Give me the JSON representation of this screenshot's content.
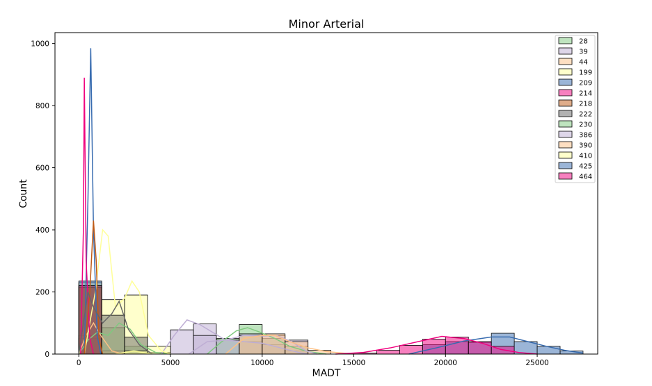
{
  "chart_data": {
    "type": "histogram",
    "title": "Minor Arterial",
    "xlabel": "MADT",
    "ylabel": "Count",
    "xlim": [
      -1300,
      28300
    ],
    "ylim": [
      0,
      1035
    ],
    "xticks": [
      0,
      5000,
      10000,
      15000,
      20000,
      25000
    ],
    "yticks": [
      0,
      200,
      400,
      600,
      800,
      1000
    ],
    "xtick_labels": [
      "0",
      "5000",
      "10000",
      "15000",
      "20000",
      "25000"
    ],
    "ytick_labels": [
      "0",
      "200",
      "400",
      "600",
      "800",
      "1000"
    ],
    "legend_position": "top-right",
    "series": [
      {
        "name": "28",
        "color": "#7fc97f",
        "bins": [
          [
            0,
            1250,
            50
          ],
          [
            1250,
            2500,
            85
          ],
          [
            2500,
            3750,
            25
          ],
          [
            3750,
            5000,
            5
          ]
        ],
        "kde": [
          [
            0,
            0
          ],
          [
            500,
            45
          ],
          [
            1000,
            70
          ],
          [
            1600,
            60
          ],
          [
            2200,
            100
          ],
          [
            2800,
            80
          ],
          [
            3400,
            30
          ],
          [
            4200,
            5
          ],
          [
            5000,
            0
          ]
        ]
      },
      {
        "name": "39",
        "color": "#beaed4",
        "bins": [
          [
            5000,
            6250,
            78
          ],
          [
            6250,
            7500,
            97
          ],
          [
            7500,
            8750,
            45
          ],
          [
            8750,
            10000,
            40
          ],
          [
            10000,
            11250,
            30
          ],
          [
            11250,
            12500,
            10
          ]
        ],
        "kde": [
          [
            4500,
            0
          ],
          [
            5200,
            60
          ],
          [
            5900,
            110
          ],
          [
            6600,
            95
          ],
          [
            7300,
            70
          ],
          [
            8000,
            45
          ],
          [
            9000,
            40
          ],
          [
            10000,
            35
          ],
          [
            11000,
            20
          ],
          [
            12000,
            5
          ],
          [
            12500,
            0
          ]
        ]
      },
      {
        "name": "44",
        "color": "#fdc086",
        "bins": [
          [
            0,
            1250,
            60
          ],
          [
            1250,
            2500,
            10
          ]
        ],
        "kde": [
          [
            0,
            0
          ],
          [
            400,
            60
          ],
          [
            800,
            100
          ],
          [
            1200,
            60
          ],
          [
            1800,
            10
          ],
          [
            2400,
            0
          ]
        ]
      },
      {
        "name": "199",
        "color": "#ffff99",
        "bins": [
          [
            0,
            1250,
            230
          ],
          [
            1250,
            2500,
            175
          ],
          [
            2500,
            3750,
            190
          ],
          [
            3750,
            5000,
            25
          ]
        ],
        "kde": [
          [
            300,
            0
          ],
          [
            900,
            200
          ],
          [
            1300,
            400
          ],
          [
            1600,
            380
          ],
          [
            2000,
            150
          ],
          [
            2500,
            180
          ],
          [
            2900,
            235
          ],
          [
            3300,
            200
          ],
          [
            3800,
            60
          ],
          [
            4500,
            10
          ],
          [
            5000,
            0
          ]
        ]
      },
      {
        "name": "209",
        "color": "#386cb0",
        "bins": [
          [
            0,
            1250,
            235
          ]
        ],
        "kde": [
          [
            300,
            0
          ],
          [
            500,
            500
          ],
          [
            650,
            985
          ],
          [
            800,
            400
          ],
          [
            1000,
            60
          ],
          [
            1200,
            0
          ]
        ]
      },
      {
        "name": "214",
        "color": "#f0027f",
        "bins": [
          [
            0,
            1250,
            220
          ]
        ],
        "kde": [
          [
            100,
            0
          ],
          [
            250,
            400
          ],
          [
            300,
            890
          ],
          [
            400,
            300
          ],
          [
            600,
            50
          ],
          [
            800,
            0
          ]
        ]
      },
      {
        "name": "218",
        "color": "#bf5b17",
        "bins": [
          [
            0,
            1250,
            215
          ]
        ],
        "kde": [
          [
            300,
            0
          ],
          [
            600,
            200
          ],
          [
            800,
            430
          ],
          [
            950,
            300
          ],
          [
            1100,
            50
          ],
          [
            1300,
            0
          ]
        ]
      },
      {
        "name": "222",
        "color": "#666666",
        "bins": [
          [
            0,
            1250,
            220
          ],
          [
            1250,
            2500,
            125
          ],
          [
            2500,
            3750,
            55
          ]
        ],
        "kde": [
          [
            0,
            0
          ],
          [
            500,
            200
          ],
          [
            800,
            150
          ],
          [
            1300,
            100
          ],
          [
            1800,
            130
          ],
          [
            2200,
            170
          ],
          [
            2700,
            80
          ],
          [
            3300,
            30
          ],
          [
            4000,
            0
          ]
        ]
      },
      {
        "name": "230",
        "color": "#7fc97f",
        "bins": [
          [
            7500,
            8750,
            50
          ],
          [
            8750,
            10000,
            95
          ],
          [
            10000,
            11250,
            50
          ],
          [
            11250,
            12500,
            25
          ]
        ],
        "kde": [
          [
            7000,
            0
          ],
          [
            7800,
            40
          ],
          [
            8600,
            75
          ],
          [
            9200,
            85
          ],
          [
            9900,
            70
          ],
          [
            10700,
            50
          ],
          [
            11500,
            25
          ],
          [
            12500,
            8
          ],
          [
            13500,
            0
          ]
        ]
      },
      {
        "name": "386",
        "color": "#beaed4",
        "bins": [
          [
            6250,
            7500,
            60
          ],
          [
            7500,
            8750,
            45
          ],
          [
            8750,
            10000,
            65
          ],
          [
            10000,
            11250,
            60
          ],
          [
            11250,
            12500,
            45
          ]
        ],
        "kde": [
          [
            6000,
            0
          ],
          [
            7000,
            40
          ],
          [
            8000,
            45
          ],
          [
            9000,
            60
          ],
          [
            10000,
            58
          ],
          [
            10800,
            60
          ],
          [
            11600,
            40
          ],
          [
            12400,
            10
          ],
          [
            13000,
            0
          ]
        ]
      },
      {
        "name": "390",
        "color": "#fdc086",
        "bins": [
          [
            8750,
            10000,
            60
          ],
          [
            10000,
            11250,
            65
          ],
          [
            11250,
            12500,
            40
          ],
          [
            12500,
            13750,
            12
          ]
        ],
        "kde": [
          [
            8000,
            0
          ],
          [
            9000,
            50
          ],
          [
            10000,
            60
          ],
          [
            10700,
            60
          ],
          [
            11500,
            40
          ],
          [
            12500,
            20
          ],
          [
            13500,
            8
          ],
          [
            15000,
            0
          ]
        ]
      },
      {
        "name": "410",
        "color": "#ffff99",
        "bins": [
          [
            2500,
            3750,
            10
          ]
        ],
        "kde": [
          [
            2000,
            0
          ],
          [
            3000,
            10
          ],
          [
            4000,
            0
          ]
        ]
      },
      {
        "name": "425",
        "color": "#386cb0",
        "bins": [
          [
            18750,
            20000,
            30
          ],
          [
            20000,
            21250,
            40
          ],
          [
            21250,
            22500,
            38
          ],
          [
            22500,
            23750,
            67
          ],
          [
            23750,
            25000,
            40
          ],
          [
            25000,
            26250,
            25
          ],
          [
            26250,
            27500,
            10
          ]
        ],
        "kde": [
          [
            18000,
            0
          ],
          [
            19500,
            20
          ],
          [
            21000,
            42
          ],
          [
            22500,
            55
          ],
          [
            23500,
            55
          ],
          [
            24500,
            40
          ],
          [
            25500,
            25
          ],
          [
            26500,
            12
          ],
          [
            27500,
            3
          ]
        ]
      },
      {
        "name": "464",
        "color": "#f0027f",
        "bins": [
          [
            15000,
            16250,
            3
          ],
          [
            16250,
            17500,
            12
          ],
          [
            17500,
            18750,
            28
          ],
          [
            18750,
            20000,
            48
          ],
          [
            20000,
            21250,
            55
          ],
          [
            21250,
            22500,
            40
          ],
          [
            22500,
            23750,
            25
          ]
        ],
        "kde": [
          [
            14000,
            0
          ],
          [
            15500,
            5
          ],
          [
            17000,
            20
          ],
          [
            18500,
            40
          ],
          [
            19800,
            57
          ],
          [
            21000,
            50
          ],
          [
            22000,
            35
          ],
          [
            23000,
            15
          ],
          [
            24000,
            5
          ],
          [
            25000,
            0
          ]
        ]
      }
    ]
  }
}
